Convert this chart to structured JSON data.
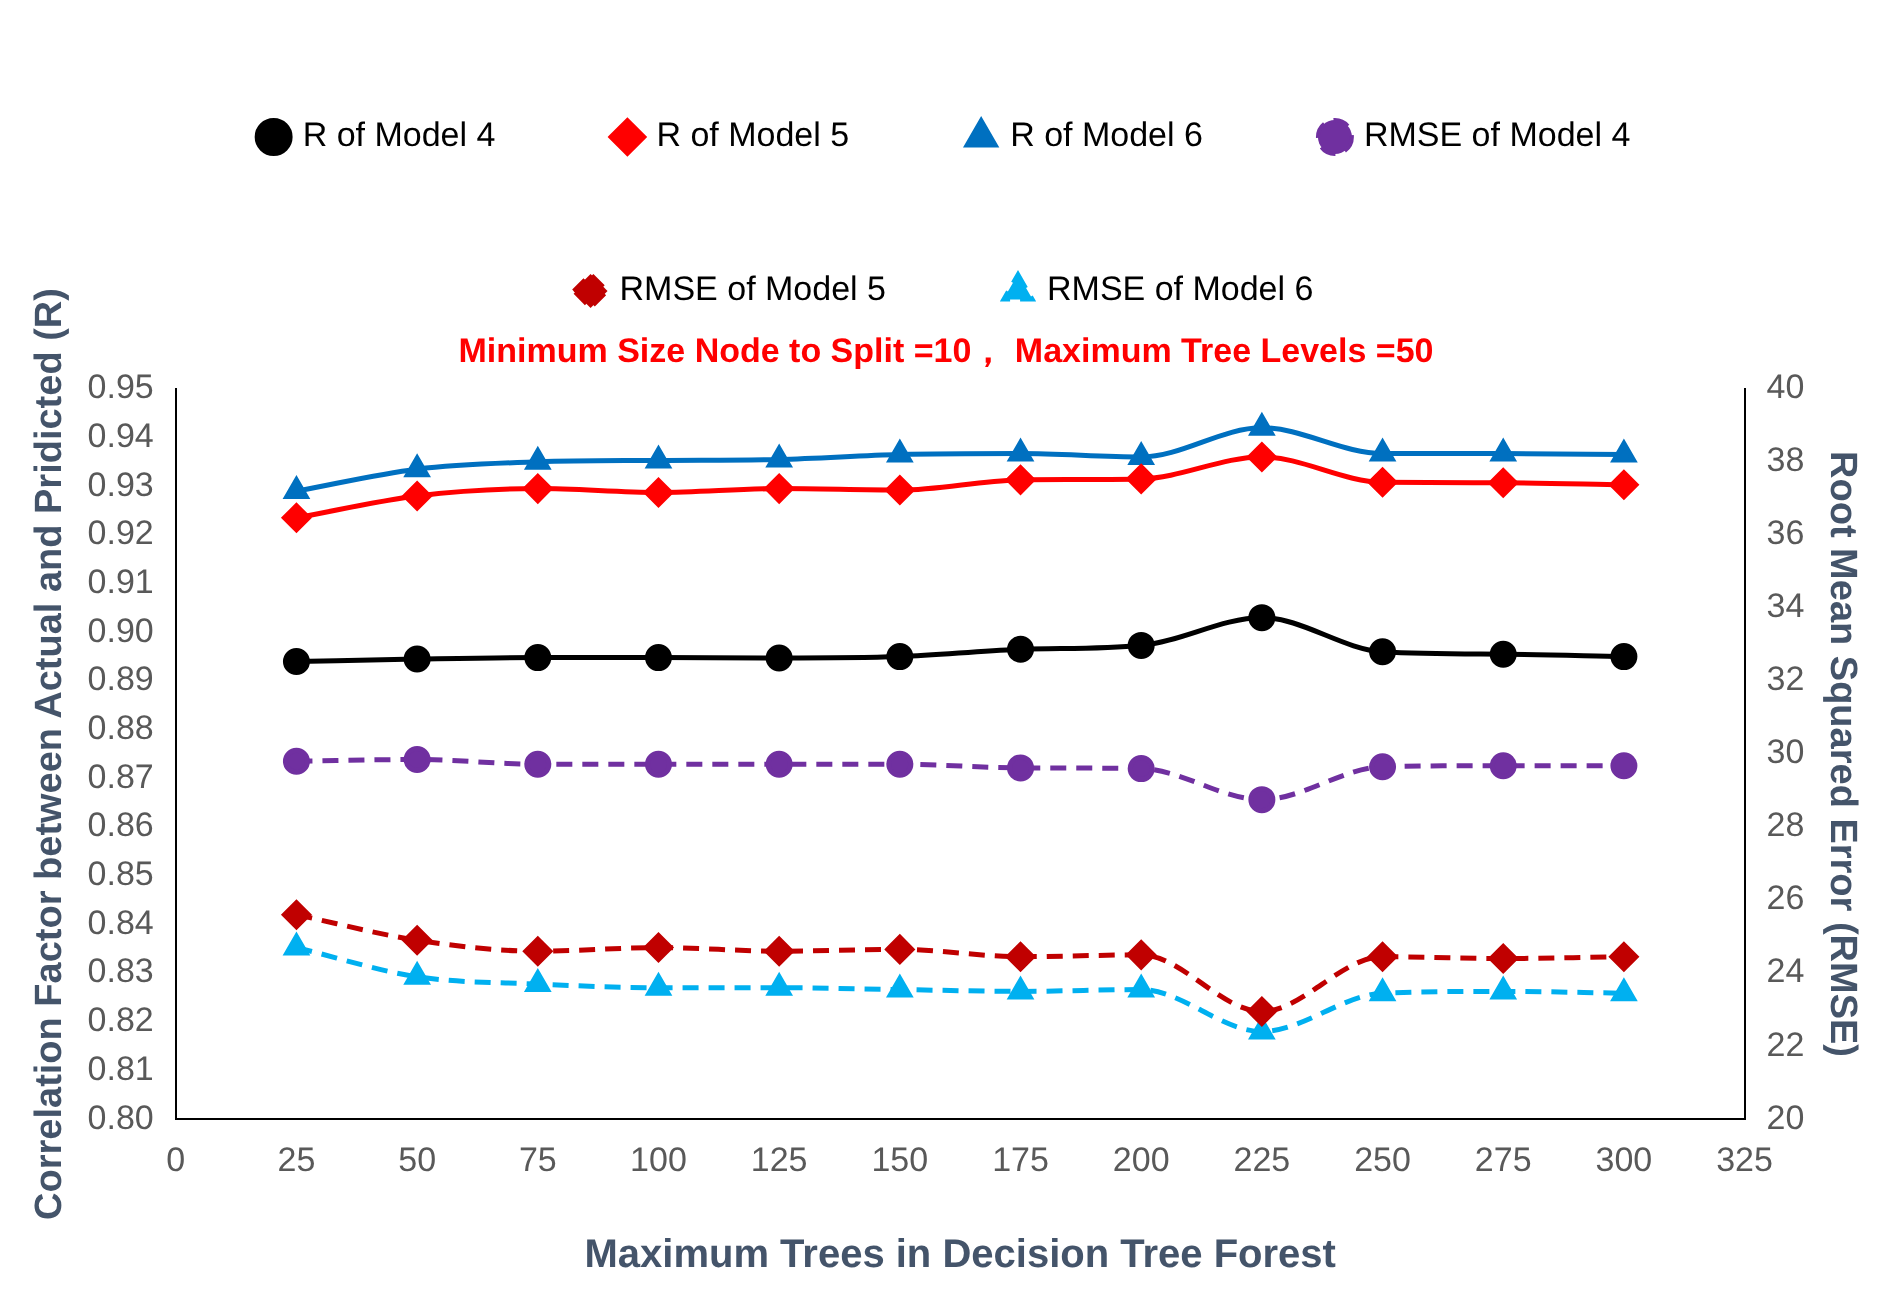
{
  "chart_data": {
    "type": "line",
    "title": "Minimum Size Node to Split =10， Maximum Tree Levels =50",
    "xlabel": "Maximum Trees in Decision Tree Forest",
    "ylabel": "Correlation Factor between Actual and Pridicted (R)",
    "y2label": "Root Mean Squared Error (RMSE)",
    "x": [
      25,
      50,
      75,
      100,
      125,
      150,
      175,
      200,
      225,
      250,
      275,
      300
    ],
    "xlim": [
      0,
      325
    ],
    "xticks": [
      0,
      25,
      50,
      75,
      100,
      125,
      150,
      175,
      200,
      225,
      250,
      275,
      300,
      325
    ],
    "ylim": [
      0.8,
      0.95
    ],
    "yticks": [
      {
        "value": 0.8,
        "label": "0.80"
      },
      {
        "value": 0.81,
        "label": "0.81"
      },
      {
        "value": 0.82,
        "label": "0.82"
      },
      {
        "value": 0.83,
        "label": "0.83"
      },
      {
        "value": 0.84,
        "label": "0.84"
      },
      {
        "value": 0.85,
        "label": "0.85"
      },
      {
        "value": 0.86,
        "label": "0.86"
      },
      {
        "value": 0.87,
        "label": "0.87"
      },
      {
        "value": 0.88,
        "label": "0.88"
      },
      {
        "value": 0.89,
        "label": "0.89"
      },
      {
        "value": 0.9,
        "label": "0.90"
      },
      {
        "value": 0.91,
        "label": "0.91"
      },
      {
        "value": 0.92,
        "label": "0.92"
      },
      {
        "value": 0.93,
        "label": "0.93"
      },
      {
        "value": 0.94,
        "label": "0.94"
      },
      {
        "value": 0.95,
        "label": "0.95"
      }
    ],
    "y2lim": [
      20,
      40
    ],
    "y2ticks": [
      20,
      22,
      24,
      26,
      28,
      30,
      32,
      34,
      36,
      38,
      40
    ],
    "grid": false,
    "legend": "top",
    "series": [
      {
        "name": "R of Model 4",
        "color": "#000000",
        "marker": "circle",
        "line_style": "solid",
        "values": [
          0.894,
          0.8945,
          0.8948,
          0.8948,
          0.8947,
          0.895,
          0.8965,
          0.8973,
          0.903,
          0.896,
          0.8955,
          0.895
        ]
      },
      {
        "name": "R of Model 5",
        "color": "#ff0000",
        "marker": "diamond",
        "line_style": "solid",
        "values": [
          0.9235,
          0.928,
          0.9295,
          0.9287,
          0.9295,
          0.9292,
          0.9313,
          0.9315,
          0.936,
          0.9308,
          0.9307,
          0.9303
        ]
      },
      {
        "name": "R of Model 6",
        "color": "#0070c0",
        "marker": "triangle",
        "line_style": "solid",
        "values": [
          0.929,
          0.9335,
          0.935,
          0.9353,
          0.9355,
          0.9365,
          0.9367,
          0.936,
          0.942,
          0.9367,
          0.9367,
          0.9365
        ]
      },
      {
        "name": "RMSE of Model 4",
        "color": "#7030a0",
        "marker": "circle",
        "line_style": "dashed",
        "axis": "y2",
        "values": [
          29.8,
          29.85,
          29.72,
          29.72,
          29.72,
          29.72,
          29.62,
          29.6,
          28.75,
          29.65,
          29.68,
          29.68
        ]
      },
      {
        "name": "RMSE of Model 5",
        "color": "#c00000",
        "marker": "diamond",
        "line_style": "dashed",
        "axis": "y2",
        "values": [
          25.6,
          24.9,
          24.6,
          24.7,
          24.6,
          24.65,
          24.45,
          24.5,
          22.95,
          24.45,
          24.4,
          24.45
        ]
      },
      {
        "name": "RMSE of Model 6",
        "color": "#00b0f0",
        "marker": "triangle",
        "line_style": "dashed",
        "axis": "y2",
        "values": [
          24.7,
          23.9,
          23.7,
          23.6,
          23.6,
          23.55,
          23.5,
          23.55,
          22.4,
          23.45,
          23.5,
          23.45
        ]
      }
    ]
  }
}
